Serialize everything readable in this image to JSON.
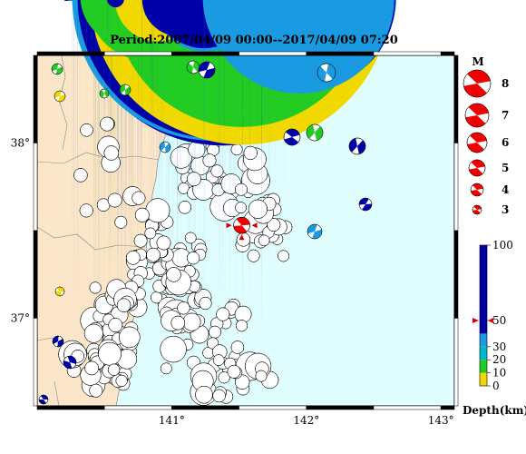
{
  "title": "Period:2007/04/09 00:00--2017/04/09 07:20",
  "map": {
    "lon_min": 140.0,
    "lon_max": 143.1,
    "lat_min": 36.5,
    "lat_max": 38.5,
    "land_color": "#fce6c9",
    "sea_color": "#e1fefe",
    "lat_ticks": [
      {
        "value": 38,
        "label": "38°"
      },
      {
        "value": 37,
        "label": "37°"
      }
    ],
    "lon_ticks": [
      {
        "value": 141,
        "label": "141°"
      },
      {
        "value": 142,
        "label": "142°"
      },
      {
        "value": 143,
        "label": "143°"
      }
    ]
  },
  "magnitude_legend": {
    "title": "M",
    "items": [
      {
        "m": 8,
        "label": "8"
      },
      {
        "m": 7,
        "label": "7"
      },
      {
        "m": 6,
        "label": "6"
      },
      {
        "m": 5,
        "label": "5"
      },
      {
        "m": 4,
        "label": "4"
      },
      {
        "m": 3,
        "label": "3"
      }
    ],
    "color": "#ee0000"
  },
  "depth_scale": {
    "title": "Depth(km)",
    "labels": [
      "100",
      "50",
      "30",
      "20",
      "10",
      "0"
    ],
    "bands": [
      {
        "from": 0,
        "to": 10,
        "color": "#f0d800"
      },
      {
        "from": 10,
        "to": 20,
        "color": "#22cc22"
      },
      {
        "from": 20,
        "to": 30,
        "color": "#00b8c8"
      },
      {
        "from": 30,
        "to": 40,
        "color": "#1a9ae0"
      },
      {
        "from": 40,
        "to": 100,
        "color": "#0000a8"
      }
    ],
    "marker_depth": 50,
    "marker_color": "#dd0000"
  },
  "colors": {
    "deep": "#0000a8",
    "mid_blue": "#1a9ae0",
    "cyan": "#00b8c8",
    "green": "#22cc22",
    "yellow": "#f0d800",
    "highlight": "#ee0000"
  },
  "highlight_event": {
    "lon": 141.52,
    "lat": 37.53,
    "depth": 50,
    "m": 5
  }
}
